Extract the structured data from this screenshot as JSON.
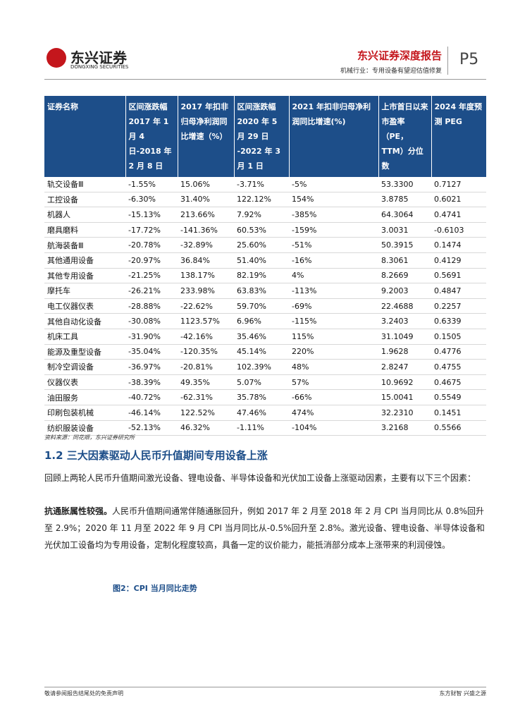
{
  "header": {
    "logo": "东兴证券",
    "logo_en": "DONGXING SECURITIES",
    "report": "东兴证券深度报告",
    "subtitle": "机械行业：专用设备有望迎估值修复",
    "page": "P5"
  },
  "table": {
    "columns": [
      "证券名称",
      "区间涨跌幅 2017 年 1 月 4 日-2018 年 2 月 8 日",
      "2017 年扣非归母净利润同比增速（%）",
      "区间涨跌幅 2020 年 5 月 29 日 -2022 年 3 月 1 日",
      "2021 年扣非归母净利润同比增速(%)",
      "上市首日以来市盈率（PE，TTM）分位数",
      "2024 年度预测 PEG"
    ],
    "rows": [
      [
        "轨交设备Ⅲ",
        "-1.55%",
        "15.06%",
        "-3.71%",
        "-5%",
        "53.3300",
        "0.7127"
      ],
      [
        "工控设备",
        "-6.30%",
        "31.40%",
        "122.12%",
        "154%",
        "3.8785",
        "0.6021"
      ],
      [
        "机器人",
        "-15.13%",
        "213.66%",
        "7.92%",
        "-385%",
        "64.3064",
        "0.4741"
      ],
      [
        "磨具磨料",
        "-17.72%",
        "-141.36%",
        "60.53%",
        "-159%",
        "3.0031",
        "-0.6103"
      ],
      [
        "航海装备Ⅲ",
        "-20.78%",
        "-32.89%",
        "25.60%",
        "-51%",
        "50.3915",
        "0.1474"
      ],
      [
        "其他通用设备",
        "-20.97%",
        "36.84%",
        "51.40%",
        "-16%",
        "8.3061",
        "0.4129"
      ],
      [
        "其他专用设备",
        "-21.25%",
        "138.17%",
        "82.19%",
        "4%",
        "8.2669",
        "0.5691"
      ],
      [
        "摩托车",
        "-26.21%",
        "233.98%",
        "63.83%",
        "-113%",
        "9.2003",
        "0.4847"
      ],
      [
        "电工仪器仪表",
        "-28.88%",
        "-22.62%",
        "59.70%",
        "-69%",
        "22.4688",
        "0.2257"
      ],
      [
        "其他自动化设备",
        "-30.08%",
        "1123.57%",
        "6.96%",
        "-115%",
        "3.2403",
        "0.6339"
      ],
      [
        "机床工具",
        "-31.90%",
        "-42.16%",
        "35.46%",
        "115%",
        "31.1049",
        "0.1505"
      ],
      [
        "能源及重型设备",
        "-35.04%",
        "-120.35%",
        "45.14%",
        "220%",
        "1.9628",
        "0.4776"
      ],
      [
        "制冷空调设备",
        "-36.97%",
        "-20.81%",
        "102.39%",
        "48%",
        "2.8247",
        "0.4755"
      ],
      [
        "仪器仪表",
        "-38.39%",
        "49.35%",
        "5.07%",
        "57%",
        "10.9692",
        "0.4675"
      ],
      [
        "油田服务",
        "-40.72%",
        "-62.31%",
        "35.78%",
        "-66%",
        "15.0041",
        "0.5549"
      ],
      [
        "印刷包装机械",
        "-46.14%",
        "122.52%",
        "47.46%",
        "474%",
        "32.2310",
        "0.1451"
      ],
      [
        "纺织服装设备",
        "-52.13%",
        "46.32%",
        "-1.11%",
        "-104%",
        "3.2168",
        "0.5566"
      ]
    ],
    "source": "资料来源：同花顺，东兴证券研究所"
  },
  "section": {
    "heading": "1.2 三大因素驱动人民币升值期间专用设备上涨",
    "intro": "回顾上两轮人民币升值期间激光设备、锂电设备、半导体设备和光伏加工设备上涨驱动因素，主要有以下三个因素：",
    "lead": "抗通胀属性较强。",
    "body": "人民币升值期间通常伴随通胀回升，例如 2017 年 2 月至 2018 年 2 月 CPI 当月同比从 0.8%回升至 2.9%；2020 年 11 月至 2022 年 9 月 CPI 当月同比从-0.5%回升至 2.8%。激光设备、锂电设备、半导体设备和光伏加工设备均为专用设备，定制化程度较高，具备一定的议价能力，能抵消部分成本上涨带来的利润侵蚀。",
    "figure": "图2：CPI 当月同比走势"
  },
  "footer": {
    "left": "敬请参阅报告结尾处的免责声明",
    "right": "东方财智 兴盛之源"
  }
}
